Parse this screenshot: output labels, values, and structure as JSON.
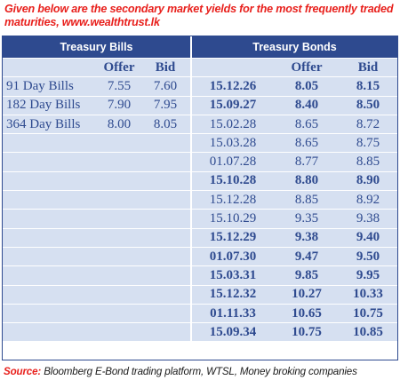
{
  "caption": "Given below are the secondary market yields for the most frequently traded maturities, www.wealthtrust.lk",
  "treasury_bills": {
    "title": "Treasury Bills",
    "offer_label": "Offer",
    "bid_label": "Bid",
    "rows": [
      {
        "name": "91 Day Bills",
        "offer": "7.55",
        "bid": "7.60"
      },
      {
        "name": "182 Day Bills",
        "offer": "7.90",
        "bid": "7.95"
      },
      {
        "name": "364 Day Bills",
        "offer": "8.00",
        "bid": "8.05"
      }
    ]
  },
  "treasury_bonds": {
    "title": "Treasury Bonds",
    "offer_label": "Offer",
    "bid_label": "Bid",
    "rows": [
      {
        "maturity": "15.12.26",
        "offer": "8.05",
        "bid": "8.15",
        "bold": true
      },
      {
        "maturity": "15.09.27",
        "offer": "8.40",
        "bid": "8.50",
        "bold": true
      },
      {
        "maturity": "15.02.28",
        "offer": "8.65",
        "bid": "8.72",
        "bold": false
      },
      {
        "maturity": "15.03.28",
        "offer": "8.65",
        "bid": "8.75",
        "bold": false
      },
      {
        "maturity": "01.07.28",
        "offer": "8.77",
        "bid": "8.85",
        "bold": false
      },
      {
        "maturity": "15.10.28",
        "offer": "8.80",
        "bid": "8.90",
        "bold": true
      },
      {
        "maturity": "15.12.28",
        "offer": "8.85",
        "bid": "8.92",
        "bold": false
      },
      {
        "maturity": "15.10.29",
        "offer": "9.35",
        "bid": "9.38",
        "bold": false
      },
      {
        "maturity": "15.12.29",
        "offer": "9.38",
        "bid": "9.40",
        "bold": true
      },
      {
        "maturity": "01.07.30",
        "offer": "9.47",
        "bid": "9.50",
        "bold": true
      },
      {
        "maturity": "15.03.31",
        "offer": "9.85",
        "bid": "9.95",
        "bold": true
      },
      {
        "maturity": "15.12.32",
        "offer": "10.27",
        "bid": "10.33",
        "bold": true
      },
      {
        "maturity": "01.11.33",
        "offer": "10.65",
        "bid": "10.75",
        "bold": true
      },
      {
        "maturity": "15.09.34",
        "offer": "10.75",
        "bid": "10.85",
        "bold": true
      }
    ]
  },
  "source": {
    "label": "Source:",
    "text": " Bloomberg E-Bond trading platform, WTSL, Money broking companies"
  }
}
